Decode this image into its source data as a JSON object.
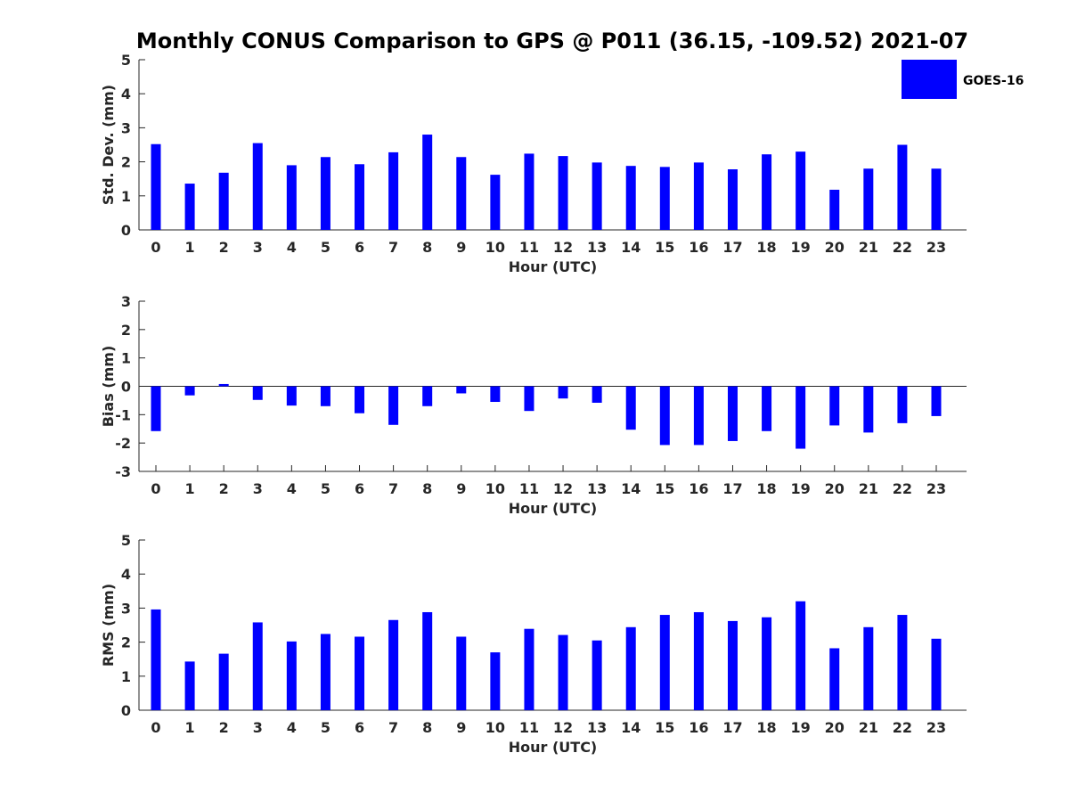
{
  "chart_data": {
    "type": "bar",
    "title": "Monthly CONUS Comparison to GPS @ P011 (36.15, -109.52) 2021-07",
    "legend": {
      "label": "GOES-16",
      "color": "#0000ff",
      "placement": "top-right"
    },
    "categories": [
      "0",
      "1",
      "2",
      "3",
      "4",
      "5",
      "6",
      "7",
      "8",
      "9",
      "10",
      "11",
      "12",
      "13",
      "14",
      "15",
      "16",
      "17",
      "18",
      "19",
      "20",
      "21",
      "22",
      "23"
    ],
    "xlabel": "Hour (UTC)",
    "panels": [
      {
        "name": "std-dev",
        "ylabel": "Std. Dev. (mm)",
        "ylim": [
          0,
          5
        ],
        "yticks": [
          "0",
          "1",
          "2",
          "3",
          "4",
          "5"
        ],
        "series": [
          {
            "name": "GOES-16",
            "values": [
              2.52,
              1.36,
              1.68,
              2.55,
              1.9,
              2.14,
              1.93,
              2.28,
              2.8,
              2.14,
              1.62,
              2.24,
              2.17,
              1.98,
              1.88,
              1.85,
              1.98,
              1.78,
              2.22,
              2.3,
              1.18,
              1.8,
              2.5,
              1.8
            ]
          }
        ]
      },
      {
        "name": "bias",
        "ylabel": "Bias (mm)",
        "ylim": [
          -3,
          3
        ],
        "yticks": [
          "-3",
          "-2",
          "-1",
          "0",
          "1",
          "2",
          "3"
        ],
        "series": [
          {
            "name": "GOES-16",
            "values": [
              -1.58,
              -0.32,
              0.08,
              -0.48,
              -0.68,
              -0.7,
              -0.95,
              -1.36,
              -0.7,
              -0.25,
              -0.55,
              -0.87,
              -0.43,
              -0.58,
              -1.53,
              -2.07,
              -2.07,
              -1.93,
              -1.58,
              -2.2,
              -1.38,
              -1.63,
              -1.3,
              -1.05
            ]
          }
        ]
      },
      {
        "name": "rms",
        "ylabel": "RMS (mm)",
        "ylim": [
          0,
          5
        ],
        "yticks": [
          "0",
          "1",
          "2",
          "3",
          "4",
          "5"
        ],
        "series": [
          {
            "name": "GOES-16",
            "values": [
              2.96,
              1.43,
              1.66,
              2.58,
              2.02,
              2.24,
              2.16,
              2.65,
              2.88,
              2.16,
              1.7,
              2.39,
              2.21,
              2.05,
              2.44,
              2.8,
              2.88,
              2.62,
              2.73,
              3.2,
              1.82,
              2.44,
              2.8,
              2.1
            ]
          }
        ]
      }
    ]
  }
}
